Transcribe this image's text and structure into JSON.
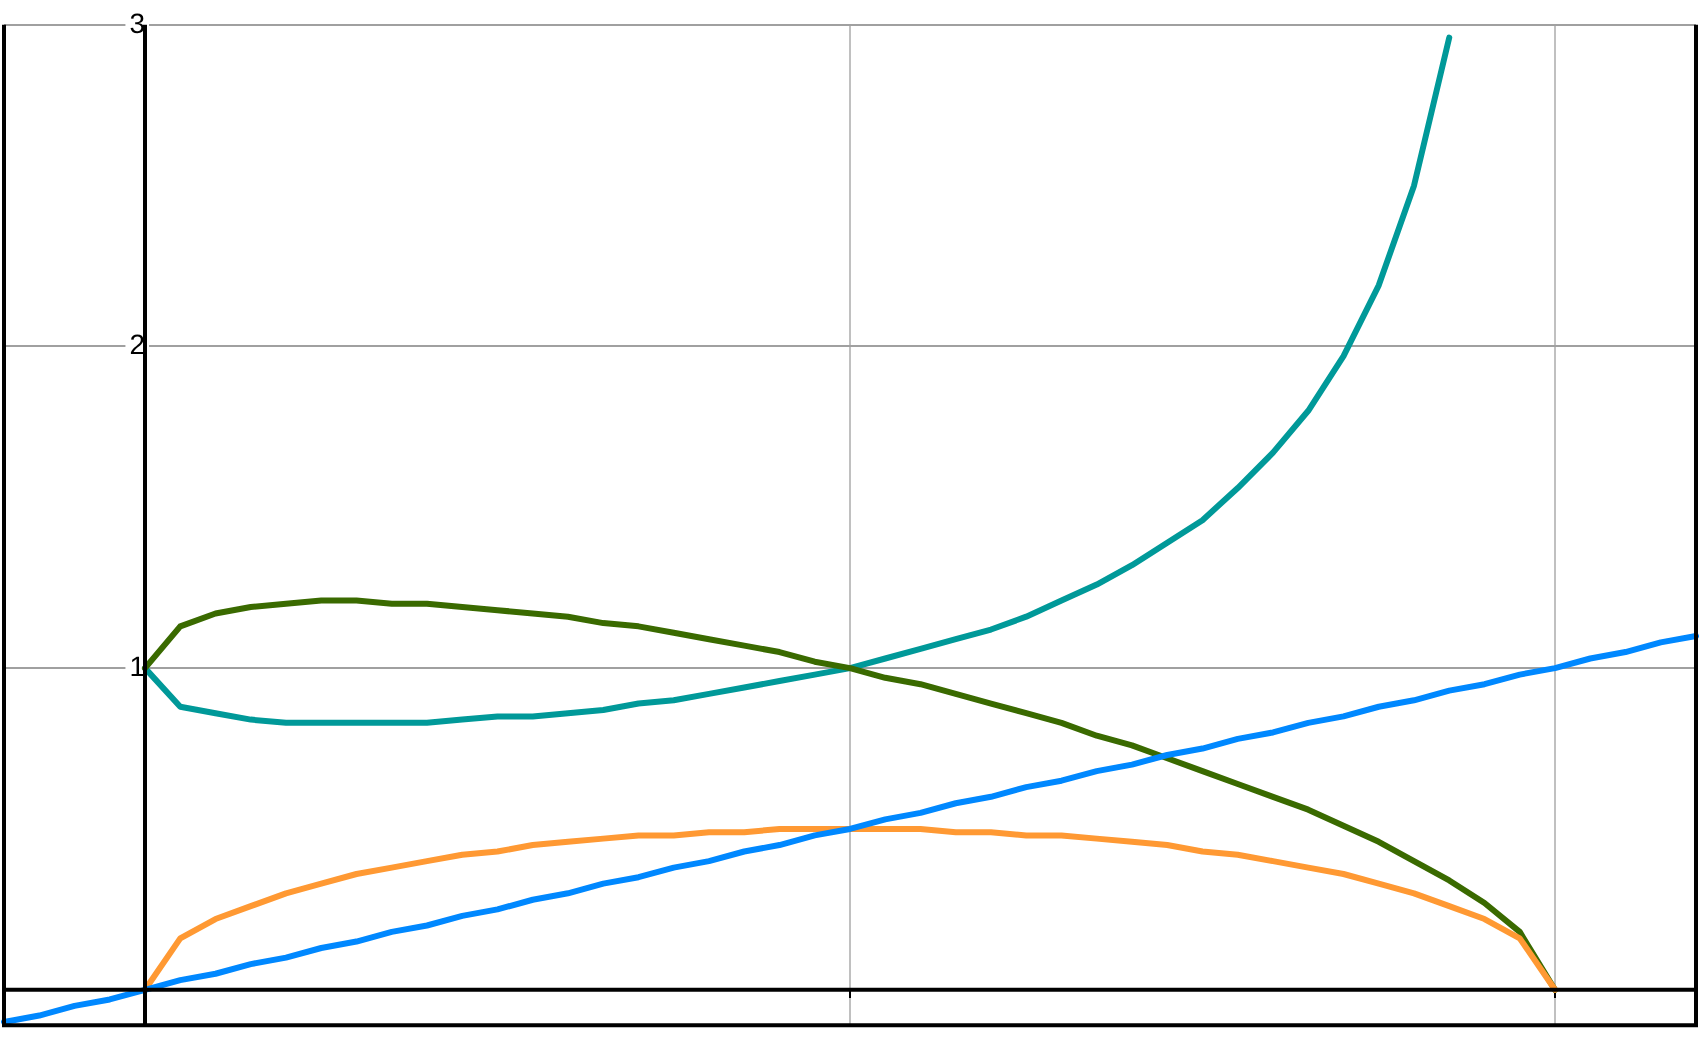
{
  "chart_data": {
    "type": "line",
    "categories": [
      null,
      null,
      null,
      null,
      null,
      null,
      null,
      null,
      null,
      null,
      null,
      null,
      null,
      null,
      null,
      null,
      null,
      null,
      null,
      null,
      null,
      null,
      null,
      null,
      null,
      null,
      null,
      null,
      null,
      null,
      null,
      null,
      null,
      null,
      null,
      null,
      null,
      null,
      null,
      null,
      null,
      null,
      null,
      null,
      null,
      null,
      null,
      null,
      null
    ],
    "ylim": [
      -0.11,
      3
    ],
    "yticks": [
      1,
      2,
      3
    ],
    "tick_labels": "y",
    "grid": true,
    "legend": false,
    "marker": "none",
    "line_style": "solid",
    "series": [
      {
        "color": "#0088ff",
        "values": [
          -0.1,
          -0.08,
          -0.05,
          -0.03,
          0,
          0.03,
          0.05,
          0.08,
          0.1,
          0.13,
          0.15,
          0.18,
          0.2,
          0.23,
          0.25,
          0.28,
          0.3,
          0.33,
          0.35,
          0.38,
          0.4,
          0.43,
          0.45,
          0.48,
          0.5,
          0.53,
          0.55,
          0.58,
          0.6,
          0.63,
          0.65,
          0.68,
          0.7,
          0.73,
          0.75,
          0.78,
          0.8,
          0.83,
          0.85,
          0.88,
          0.9,
          0.93,
          0.95,
          0.98,
          1,
          1.03,
          1.05,
          1.08,
          1.1
        ]
      },
      {
        "color": "#ff9933",
        "values": [
          null,
          null,
          null,
          null,
          0,
          0.16,
          0.22,
          0.26,
          0.3,
          0.33,
          0.36,
          0.38,
          0.4,
          0.42,
          0.43,
          0.45,
          0.46,
          0.47,
          0.48,
          0.48,
          0.49,
          0.49,
          0.5,
          0.5,
          0.5,
          0.5,
          0.5,
          0.49,
          0.49,
          0.48,
          0.48,
          0.47,
          0.46,
          0.45,
          0.43,
          0.42,
          0.4,
          0.38,
          0.36,
          0.33,
          0.3,
          0.26,
          0.22,
          0.16,
          0,
          null,
          null,
          null,
          null
        ]
      },
      {
        "color": "#3a6a00",
        "values": [
          null,
          null,
          null,
          null,
          1,
          1.13,
          1.17,
          1.19,
          1.2,
          1.21,
          1.21,
          1.2,
          1.2,
          1.19,
          1.18,
          1.17,
          1.16,
          1.14,
          1.13,
          1.11,
          1.09,
          1.07,
          1.05,
          1.02,
          1,
          0.97,
          0.95,
          0.92,
          0.89,
          0.86,
          0.83,
          0.79,
          0.76,
          0.72,
          0.68,
          0.64,
          0.6,
          0.56,
          0.51,
          0.46,
          0.4,
          0.34,
          0.27,
          0.18,
          0,
          null,
          null,
          null,
          null
        ]
      },
      {
        "color": "#009999",
        "values": [
          null,
          null,
          null,
          null,
          1,
          0.88,
          0.86,
          0.84,
          0.83,
          0.83,
          0.83,
          0.83,
          0.83,
          0.84,
          0.85,
          0.85,
          0.86,
          0.87,
          0.89,
          0.9,
          0.92,
          0.94,
          0.96,
          0.98,
          1,
          1.03,
          1.06,
          1.09,
          1.12,
          1.16,
          1.21,
          1.26,
          1.32,
          1.39,
          1.46,
          1.56,
          1.67,
          1.8,
          1.97,
          2.19,
          2.5,
          2.96,
          null,
          null,
          null,
          null,
          null,
          null,
          null
        ]
      }
    ]
  }
}
